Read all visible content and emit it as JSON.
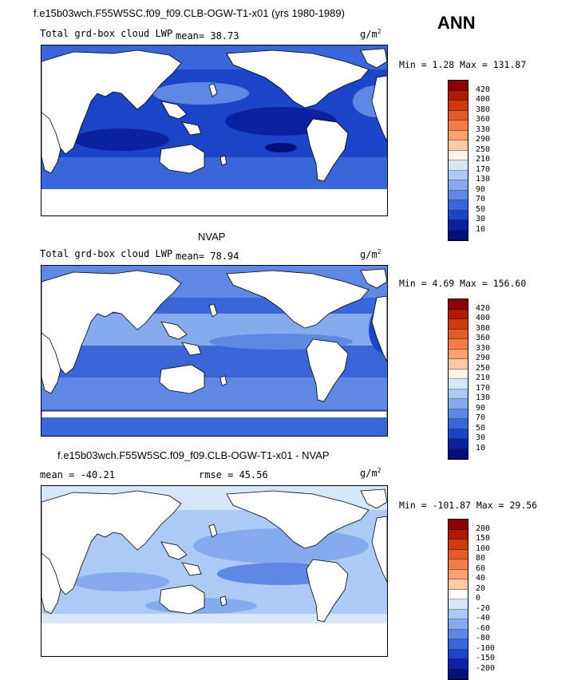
{
  "header": {
    "season_label": "ANN"
  },
  "panels": [
    {
      "title": "f.e15b03wch.F55W5SC.f09_f09.CLB-OGW-T1-x01 (yrs 1980-1989)",
      "subtitle": "Total grd-box cloud LWP",
      "mean_text": "mean=   38.73",
      "units": "g/m",
      "units_exp": "2",
      "minmax_text": "Min =   1.28 Max = 131.87",
      "legend_levels": [
        "420",
        "400",
        "380",
        "360",
        "330",
        "290",
        "250",
        "210",
        "170",
        "130",
        "90",
        "70",
        "50",
        "30",
        "10"
      ]
    },
    {
      "title": "NVAP",
      "subtitle": "Total grd-box cloud LWP",
      "mean_text": "mean=   78.94",
      "units": "g/m",
      "units_exp": "2",
      "minmax_text": "Min =   4.69 Max = 156.60",
      "legend_levels": [
        "420",
        "400",
        "380",
        "360",
        "330",
        "290",
        "250",
        "210",
        "170",
        "130",
        "90",
        "70",
        "50",
        "30",
        "10"
      ]
    },
    {
      "title": "f.e15b03wch.F55W5SC.f09_f09.CLB-OGW-T1-x01 - NVAP",
      "subtitle": "mean = -40.21",
      "rmse_text": "rmse =   45.56",
      "units": "g/m",
      "units_exp": "2",
      "minmax_text": "Min = -101.87 Max =  29.56",
      "legend_levels": [
        "200",
        "150",
        "100",
        "80",
        "60",
        "40",
        "20",
        "0",
        "-20",
        "-40",
        "-60",
        "-80",
        "-100",
        "-150",
        "-200"
      ]
    }
  ],
  "colors": {
    "abs_scale": [
      "#8b0000",
      "#b01b00",
      "#d03a10",
      "#e55a2a",
      "#f07d4a",
      "#f8a070",
      "#fcc9a6",
      "#fdf2e6",
      "#d6e6fb",
      "#adc9f5",
      "#86aaee",
      "#5e88e3",
      "#3a66d9",
      "#1c44c8",
      "#0b22a0",
      "#00107a"
    ],
    "diff_scale": [
      "#8b0000",
      "#b01b00",
      "#d03a10",
      "#e55a2a",
      "#f07d4a",
      "#f8a070",
      "#fcc9a6",
      "#ffffff",
      "#d6e6fb",
      "#adc9f5",
      "#86aaee",
      "#5e88e3",
      "#3a66d9",
      "#1c44c8",
      "#0b22a0",
      "#00107a"
    ]
  }
}
